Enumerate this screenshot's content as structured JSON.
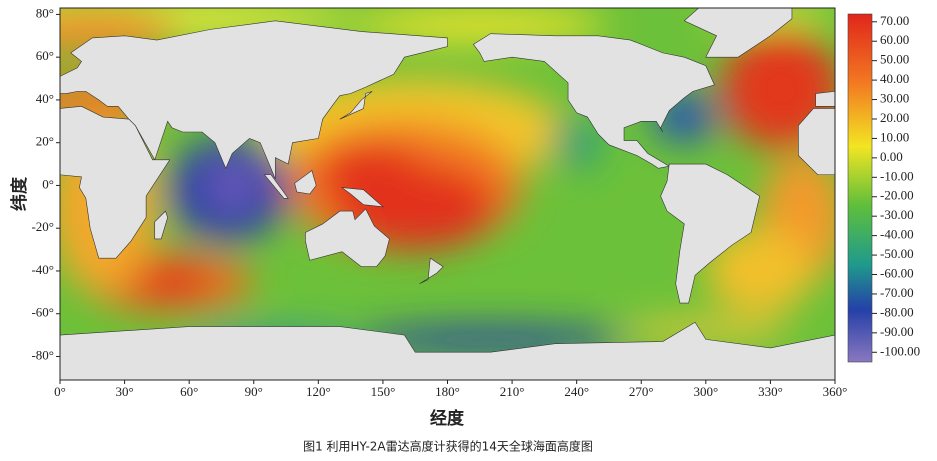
{
  "map": {
    "ylabel": "纬度",
    "xlabel": "经度",
    "xlim": [
      0,
      360
    ],
    "ylim": [
      -91,
      83
    ],
    "xticks": [
      {
        "value": 0,
        "label": "0°"
      },
      {
        "value": 30,
        "label": "30°"
      },
      {
        "value": 60,
        "label": "60°"
      },
      {
        "value": 90,
        "label": "90°"
      },
      {
        "value": 120,
        "label": "120°"
      },
      {
        "value": 150,
        "label": "150°"
      },
      {
        "value": 180,
        "label": "180°"
      },
      {
        "value": 210,
        "label": "210°"
      },
      {
        "value": 240,
        "label": "240°"
      },
      {
        "value": 270,
        "label": "270°"
      },
      {
        "value": 300,
        "label": "300°"
      },
      {
        "value": 330,
        "label": "330°"
      },
      {
        "value": 360,
        "label": "360°"
      }
    ],
    "yticks": [
      {
        "value": 80,
        "label": "80°"
      },
      {
        "value": 60,
        "label": "60°"
      },
      {
        "value": 40,
        "label": "40°"
      },
      {
        "value": 20,
        "label": "20°"
      },
      {
        "value": 0,
        "label": "0°"
      },
      {
        "value": -20,
        "label": "-20°"
      },
      {
        "value": -40,
        "label": "-40°"
      },
      {
        "value": -60,
        "label": "-60°"
      },
      {
        "value": -80,
        "label": "-80°"
      }
    ]
  },
  "colorbar": {
    "clim": [
      -105,
      74
    ],
    "ticks": [
      {
        "value": 70,
        "label": "70.00"
      },
      {
        "value": 60,
        "label": "60.00"
      },
      {
        "value": 50,
        "label": "50.00"
      },
      {
        "value": 40,
        "label": "40.00"
      },
      {
        "value": 30,
        "label": "30.00"
      },
      {
        "value": 20,
        "label": "20.00"
      },
      {
        "value": 10,
        "label": "10.00"
      },
      {
        "value": 0,
        "label": "0.00"
      },
      {
        "value": -10,
        "label": "-10.00"
      },
      {
        "value": -20,
        "label": "-20.00"
      },
      {
        "value": -30,
        "label": "-30.00"
      },
      {
        "value": -40,
        "label": "-40.00"
      },
      {
        "value": -50,
        "label": "-50.00"
      },
      {
        "value": -60,
        "label": "-60.00"
      },
      {
        "value": -70,
        "label": "-70.00"
      },
      {
        "value": -80,
        "label": "-80.00"
      },
      {
        "value": -90,
        "label": "-90.00"
      },
      {
        "value": -100,
        "label": "-100.00"
      }
    ]
  },
  "caption": "图1 利用HY-2A雷达高度计获得的14天全球海面高度图"
}
